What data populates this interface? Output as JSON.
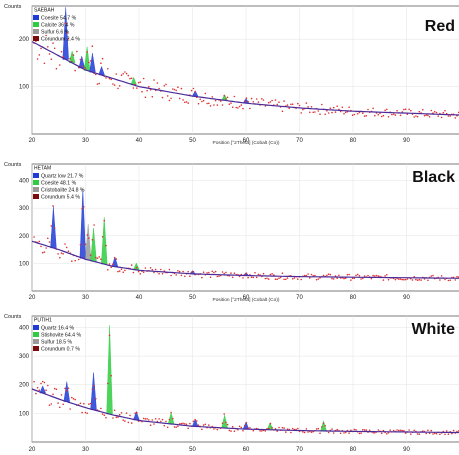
{
  "chart_data": [
    {
      "type": "line",
      "sample_id": "SAEBAH",
      "title": "Red",
      "ylabel": "Counts",
      "xlabel": "Position [°2Theta] (Cobalt (Co))",
      "xlim": [
        20,
        100
      ],
      "ylim": [
        0,
        270
      ],
      "xticks": [
        20,
        30,
        40,
        50,
        60,
        70,
        80,
        90
      ],
      "yticks": [
        100,
        200
      ],
      "legend": [
        {
          "label": "Coesite 54.7 %",
          "color": "#1f3bd6"
        },
        {
          "label": "Calcite 36.4 %",
          "color": "#2ecc40"
        },
        {
          "label": "Sulfur 6.6 %",
          "color": "#999999"
        },
        {
          "label": "Corundum 2.4 %",
          "color": "#7a0b0b"
        }
      ],
      "background": {
        "x": [
          20,
          25,
          30,
          40,
          50,
          60,
          70,
          80,
          90,
          100
        ],
        "y": [
          195,
          165,
          135,
          100,
          80,
          65,
          55,
          48,
          44,
          40
        ]
      },
      "peaks": [
        {
          "x": 26.3,
          "h": 110,
          "color": "#1f3bd6"
        },
        {
          "x": 27.5,
          "h": 25,
          "color": "#2ecc40"
        },
        {
          "x": 29.3,
          "h": 25,
          "color": "#1f3bd6"
        },
        {
          "x": 30.3,
          "h": 50,
          "color": "#2ecc40"
        },
        {
          "x": 31.3,
          "h": 40,
          "color": "#1f3bd6"
        },
        {
          "x": 33.0,
          "h": 18,
          "color": "#1f3bd6"
        },
        {
          "x": 39.0,
          "h": 16,
          "color": "#2ecc40"
        },
        {
          "x": 50.5,
          "h": 12,
          "color": "#1f3bd6"
        },
        {
          "x": 56.0,
          "h": 12,
          "color": "#2ecc40"
        },
        {
          "x": 60.0,
          "h": 10,
          "color": "#1f3bd6"
        }
      ]
    },
    {
      "type": "line",
      "sample_id": "HETAM",
      "title": "Black",
      "ylabel": "Counts",
      "xlabel": "Position [°2Theta] (Cobalt (Co))",
      "xlim": [
        20,
        100
      ],
      "ylim": [
        0,
        460
      ],
      "xticks": [
        20,
        30,
        40,
        50,
        60,
        70,
        80,
        90
      ],
      "yticks": [
        100,
        200,
        300,
        400
      ],
      "legend": [
        {
          "label": "Quartz low 21.7 %",
          "color": "#1f3bd6"
        },
        {
          "label": "Coesite 48.1 %",
          "color": "#2ecc40"
        },
        {
          "label": "Cristobalite 24.8 %",
          "color": "#999999"
        },
        {
          "label": "Corundum 5.4 %",
          "color": "#7a0b0b"
        }
      ],
      "background": {
        "x": [
          20,
          25,
          30,
          35,
          40,
          50,
          60,
          70,
          80,
          90,
          100
        ],
        "y": [
          180,
          150,
          115,
          90,
          75,
          62,
          56,
          52,
          50,
          48,
          46
        ]
      },
      "peaks": [
        {
          "x": 24.0,
          "h": 150,
          "color": "#1f3bd6"
        },
        {
          "x": 29.5,
          "h": 250,
          "color": "#1f3bd6"
        },
        {
          "x": 30.5,
          "h": 130,
          "color": "#999999"
        },
        {
          "x": 31.5,
          "h": 120,
          "color": "#2ecc40"
        },
        {
          "x": 33.5,
          "h": 170,
          "color": "#2ecc40"
        },
        {
          "x": 35.5,
          "h": 35,
          "color": "#1f3bd6"
        },
        {
          "x": 39.5,
          "h": 25,
          "color": "#2ecc40"
        },
        {
          "x": 50.0,
          "h": 12,
          "color": "#1f3bd6"
        },
        {
          "x": 60.0,
          "h": 10,
          "color": "#1f3bd6"
        }
      ]
    },
    {
      "type": "line",
      "sample_id": "PUTIH1",
      "title": "White",
      "ylabel": "Counts",
      "xlabel": "",
      "xlim": [
        20,
        100
      ],
      "ylim": [
        0,
        440
      ],
      "xticks": [
        20,
        30,
        40,
        50,
        60,
        70,
        80,
        90
      ],
      "yticks": [
        100,
        200,
        300,
        400
      ],
      "legend": [
        {
          "label": "Quartz 16.4 %",
          "color": "#1f3bd6"
        },
        {
          "label": "Stishovite 64.4 %",
          "color": "#2ecc40"
        },
        {
          "label": "Sulfur 18.5 %",
          "color": "#999999"
        },
        {
          "label": "Corundum 0.7 %",
          "color": "#7a0b0b"
        }
      ],
      "background": {
        "x": [
          20,
          25,
          30,
          35,
          40,
          50,
          60,
          70,
          80,
          90,
          100
        ],
        "y": [
          185,
          150,
          120,
          95,
          75,
          55,
          45,
          40,
          37,
          35,
          33
        ]
      },
      "peaks": [
        {
          "x": 22.0,
          "h": 25,
          "color": "#1f3bd6"
        },
        {
          "x": 26.5,
          "h": 70,
          "color": "#1f3bd6"
        },
        {
          "x": 31.5,
          "h": 130,
          "color": "#1f3bd6"
        },
        {
          "x": 34.5,
          "h": 310,
          "color": "#2ecc40"
        },
        {
          "x": 39.5,
          "h": 30,
          "color": "#1f3bd6"
        },
        {
          "x": 46.0,
          "h": 40,
          "color": "#2ecc40"
        },
        {
          "x": 50.5,
          "h": 25,
          "color": "#1f3bd6"
        },
        {
          "x": 56.0,
          "h": 45,
          "color": "#2ecc40"
        },
        {
          "x": 60.0,
          "h": 25,
          "color": "#1f3bd6"
        },
        {
          "x": 64.5,
          "h": 25,
          "color": "#2ecc40"
        },
        {
          "x": 74.5,
          "h": 35,
          "color": "#2ecc40"
        }
      ]
    }
  ]
}
